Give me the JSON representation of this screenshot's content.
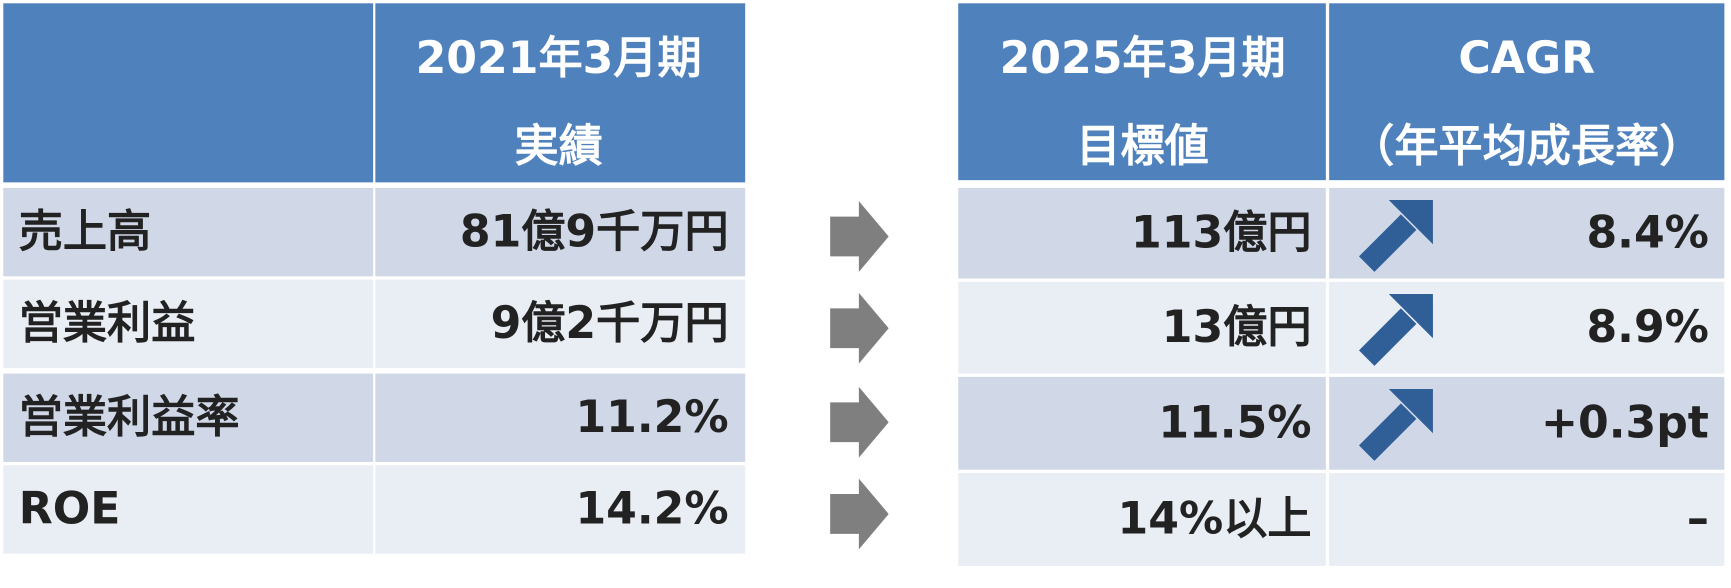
{
  "left_table": {
    "header": [
      "2021年3月期",
      "実績"
    ],
    "rows": [
      [
        "売上高",
        "81億9千万円"
      ],
      [
        "営業利益",
        "9億2千万円"
      ],
      [
        "営業利益率",
        "11.2%"
      ],
      [
        "ROE",
        "14.2%"
      ]
    ]
  },
  "right_table": {
    "headers": [
      [
        "2025年3月期",
        "目標値"
      ],
      [
        "CAGR",
        "（年平均成長率）"
      ]
    ],
    "rows": [
      [
        "113億円",
        "8.4%"
      ],
      [
        "13億円",
        "8.9%"
      ],
      [
        "11.5%",
        "+0.3pt"
      ],
      [
        "14%以上",
        "–"
      ]
    ]
  }
}
